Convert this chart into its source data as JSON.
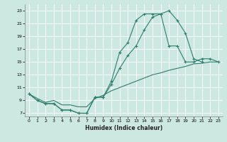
{
  "xlabel": "Humidex (Indice chaleur)",
  "bg_color": "#cde8e0",
  "grid_color": "#ffffff",
  "line_color": "#2e7d6e",
  "xlim": [
    -0.5,
    23.5
  ],
  "ylim": [
    6.5,
    24.0
  ],
  "xticks": [
    0,
    1,
    2,
    3,
    4,
    5,
    6,
    7,
    8,
    9,
    10,
    11,
    12,
    13,
    14,
    15,
    16,
    17,
    18,
    19,
    20,
    21,
    22,
    23
  ],
  "yticks": [
    7,
    9,
    11,
    13,
    15,
    17,
    19,
    21,
    23
  ],
  "line1_x": [
    0,
    1,
    2,
    3,
    4,
    5,
    6,
    7,
    8,
    9,
    10,
    11,
    12,
    13,
    14,
    15,
    16,
    17,
    18,
    19,
    20,
    21
  ],
  "line1_y": [
    10,
    9,
    8.5,
    8.5,
    7.5,
    7.5,
    7.0,
    7.0,
    9.5,
    9.5,
    12.0,
    16.5,
    18.0,
    21.5,
    22.5,
    22.5,
    22.5,
    23.0,
    21.5,
    19.5,
    15.5,
    15.0
  ],
  "line2_x": [
    0,
    1,
    2,
    3,
    4,
    5,
    6,
    7,
    8,
    9,
    10,
    11,
    12,
    13,
    14,
    15,
    16,
    17,
    18,
    19,
    20,
    21,
    22,
    23
  ],
  "line2_y": [
    10,
    9,
    8.5,
    8.5,
    7.5,
    7.5,
    7.0,
    7.0,
    9.5,
    9.5,
    11.5,
    14.0,
    16.0,
    17.5,
    20.0,
    22.0,
    22.5,
    17.5,
    17.5,
    15.0,
    15.0,
    15.5,
    15.5,
    15.0
  ],
  "line3_x": [
    0,
    1,
    2,
    3,
    4,
    5,
    6,
    7,
    8,
    9,
    10,
    11,
    12,
    13,
    14,
    15,
    16,
    17,
    18,
    19,
    20,
    21,
    22,
    23
  ],
  "line3_y": [
    10,
    9.3,
    8.7,
    9.0,
    8.3,
    8.3,
    8.0,
    8.0,
    9.3,
    9.8,
    10.5,
    11.0,
    11.5,
    12.0,
    12.5,
    13.0,
    13.3,
    13.7,
    14.0,
    14.3,
    14.7,
    14.8,
    15.0,
    15.0
  ]
}
